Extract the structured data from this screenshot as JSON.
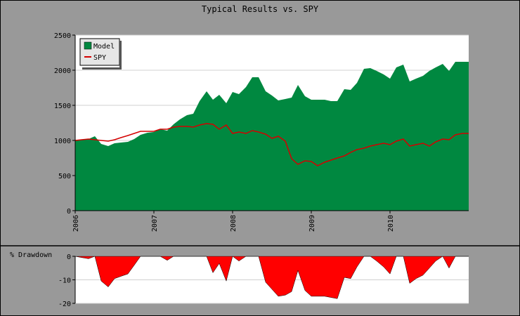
{
  "chart_data": [
    {
      "type": "area",
      "title": "Typical Results vs. SPY",
      "ylim": [
        0,
        2500
      ],
      "yticks": [
        0,
        500,
        1000,
        1500,
        2000,
        2500
      ],
      "xlim": [
        2006.0,
        2011.0
      ],
      "xticks": [
        {
          "value": 2006,
          "label": "2006"
        },
        {
          "value": 2007,
          "label": "2007"
        },
        {
          "value": 2008,
          "label": "2008"
        },
        {
          "value": 2009,
          "label": "2009"
        },
        {
          "value": 2010,
          "label": "2010"
        }
      ],
      "grid": true,
      "legend": "top-left",
      "series": [
        {
          "name": "Model",
          "type": "area",
          "color": "#008840",
          "x": [
            2006.0,
            2006.08,
            2006.17,
            2006.25,
            2006.33,
            2006.42,
            2006.5,
            2006.58,
            2006.67,
            2006.75,
            2006.83,
            2006.92,
            2007.0,
            2007.08,
            2007.17,
            2007.25,
            2007.33,
            2007.42,
            2007.5,
            2007.58,
            2007.67,
            2007.75,
            2007.83,
            2007.92,
            2008.0,
            2008.08,
            2008.17,
            2008.25,
            2008.33,
            2008.42,
            2008.5,
            2008.58,
            2008.67,
            2008.75,
            2008.83,
            2008.92,
            2009.0,
            2009.08,
            2009.17,
            2009.25,
            2009.33,
            2009.42,
            2009.5,
            2009.58,
            2009.67,
            2009.75,
            2009.83,
            2009.92,
            2010.0,
            2010.08,
            2010.17,
            2010.25,
            2010.33,
            2010.42,
            2010.5,
            2010.58,
            2010.67,
            2010.75,
            2010.83,
            2010.92,
            2011.0
          ],
          "values": [
            1000,
            1010,
            1020,
            1060,
            950,
            920,
            960,
            970,
            980,
            1020,
            1080,
            1110,
            1120,
            1160,
            1140,
            1230,
            1300,
            1360,
            1380,
            1560,
            1700,
            1580,
            1650,
            1530,
            1690,
            1660,
            1760,
            1900,
            1900,
            1700,
            1640,
            1570,
            1590,
            1610,
            1790,
            1630,
            1580,
            1580,
            1580,
            1560,
            1560,
            1730,
            1720,
            1820,
            2020,
            2030,
            1990,
            1940,
            1880,
            2040,
            2080,
            1840,
            1880,
            1920,
            1990,
            2040,
            2090,
            1990,
            2120,
            2120,
            2120
          ]
        },
        {
          "name": "SPY",
          "type": "line",
          "color": "#d40000",
          "x": [
            2006.0,
            2006.08,
            2006.17,
            2006.25,
            2006.33,
            2006.42,
            2006.5,
            2006.58,
            2006.67,
            2006.75,
            2006.83,
            2006.92,
            2007.0,
            2007.08,
            2007.17,
            2007.25,
            2007.33,
            2007.42,
            2007.5,
            2007.58,
            2007.67,
            2007.75,
            2007.83,
            2007.92,
            2008.0,
            2008.08,
            2008.17,
            2008.25,
            2008.33,
            2008.42,
            2008.5,
            2008.58,
            2008.67,
            2008.75,
            2008.83,
            2008.92,
            2009.0,
            2009.08,
            2009.17,
            2009.25,
            2009.33,
            2009.42,
            2009.5,
            2009.58,
            2009.67,
            2009.75,
            2009.83,
            2009.92,
            2010.0,
            2010.08,
            2010.17,
            2010.25,
            2010.33,
            2010.42,
            2010.5,
            2010.58,
            2010.67,
            2010.75,
            2010.83,
            2010.92,
            2011.0
          ],
          "values": [
            1000,
            1010,
            1020,
            1010,
            1000,
            990,
            1010,
            1040,
            1070,
            1100,
            1130,
            1130,
            1130,
            1160,
            1160,
            1190,
            1200,
            1200,
            1190,
            1220,
            1240,
            1230,
            1160,
            1220,
            1100,
            1120,
            1100,
            1140,
            1120,
            1090,
            1030,
            1060,
            990,
            740,
            660,
            710,
            700,
            640,
            690,
            720,
            750,
            780,
            830,
            870,
            890,
            920,
            940,
            960,
            940,
            990,
            1020,
            920,
            940,
            960,
            920,
            980,
            1020,
            1010,
            1080,
            1100,
            1100
          ]
        }
      ]
    },
    {
      "type": "area",
      "ylabel": "% Drawdown",
      "ylim": [
        -20,
        0
      ],
      "yticks": [
        0,
        -10,
        -20
      ],
      "xlim": [
        2006.0,
        2011.0
      ],
      "grid": true,
      "series": [
        {
          "type": "area",
          "color": "#ff0000",
          "x": [
            2006.0,
            2006.08,
            2006.17,
            2006.25,
            2006.33,
            2006.42,
            2006.5,
            2006.58,
            2006.67,
            2006.75,
            2006.83,
            2006.92,
            2007.0,
            2007.08,
            2007.17,
            2007.25,
            2007.33,
            2007.42,
            2007.5,
            2007.58,
            2007.67,
            2007.75,
            2007.83,
            2007.92,
            2008.0,
            2008.08,
            2008.17,
            2008.25,
            2008.33,
            2008.42,
            2008.5,
            2008.58,
            2008.67,
            2008.75,
            2008.83,
            2008.92,
            2009.0,
            2009.08,
            2009.17,
            2009.25,
            2009.33,
            2009.42,
            2009.5,
            2009.58,
            2009.67,
            2009.75,
            2009.83,
            2009.92,
            2010.0,
            2010.08,
            2010.17,
            2010.25,
            2010.33,
            2010.42,
            2010.5,
            2010.58,
            2010.67,
            2010.75,
            2010.83,
            2010.92,
            2011.0
          ],
          "values": [
            0,
            -0.5,
            -1,
            0,
            -10.5,
            -13,
            -9.5,
            -8.5,
            -7.5,
            -3.8,
            0,
            0,
            0,
            0,
            -1.7,
            0,
            0,
            0,
            0,
            0,
            0,
            -7,
            -3,
            -10.5,
            0,
            -2,
            0,
            0,
            0,
            -11,
            -14,
            -17,
            -16.5,
            -15,
            -6,
            -14.5,
            -17,
            -17,
            -17,
            -17.5,
            -18,
            -9,
            -9.5,
            -4.5,
            0,
            0,
            -2,
            -4.5,
            -7.5,
            0,
            0,
            -11.5,
            -9.5,
            -8,
            -5,
            -2,
            0,
            -5,
            0,
            0,
            0
          ]
        }
      ]
    }
  ]
}
